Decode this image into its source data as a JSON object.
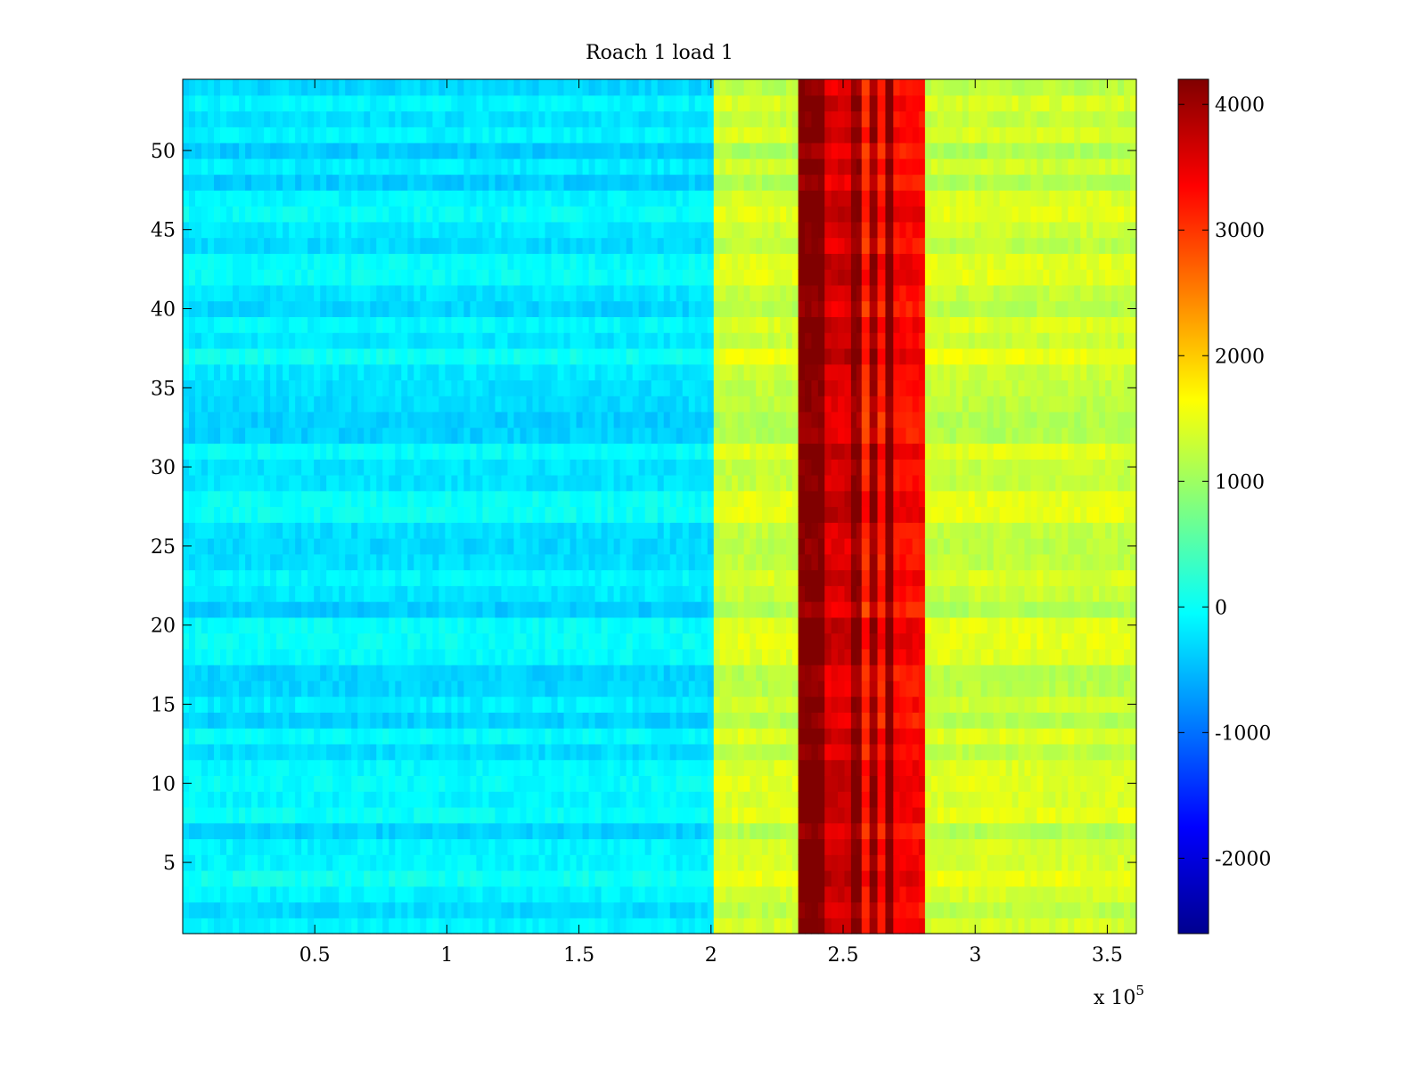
{
  "chart_data": {
    "type": "heatmap",
    "title": "Roach 1 load 1",
    "xlabel": "",
    "ylabel": "",
    "colormap": "jet",
    "x_range": [
      0,
      361000
    ],
    "y_range": [
      0.5,
      54.5
    ],
    "x_exponent_label": "x 10",
    "x_exponent": "5",
    "x_ticks": [
      {
        "value": 50000,
        "label": "0.5"
      },
      {
        "value": 100000,
        "label": "1"
      },
      {
        "value": 150000,
        "label": "1.5"
      },
      {
        "value": 200000,
        "label": "2"
      },
      {
        "value": 250000,
        "label": "2.5"
      },
      {
        "value": 300000,
        "label": "3"
      },
      {
        "value": 350000,
        "label": "3.5"
      }
    ],
    "y_ticks": [
      {
        "value": 5,
        "label": "5"
      },
      {
        "value": 10,
        "label": "10"
      },
      {
        "value": 15,
        "label": "15"
      },
      {
        "value": 20,
        "label": "20"
      },
      {
        "value": 25,
        "label": "25"
      },
      {
        "value": 30,
        "label": "30"
      },
      {
        "value": 35,
        "label": "35"
      },
      {
        "value": 40,
        "label": "40"
      },
      {
        "value": 45,
        "label": "45"
      },
      {
        "value": 50,
        "label": "50"
      }
    ],
    "colorbar": {
      "clim": [
        -2600,
        4200
      ],
      "ticks": [
        {
          "value": -2000,
          "label": "-2000"
        },
        {
          "value": -1000,
          "label": "-1000"
        },
        {
          "value": 0,
          "label": "0"
        },
        {
          "value": 1000,
          "label": "1000"
        },
        {
          "value": 2000,
          "label": "2000"
        },
        {
          "value": 3000,
          "label": "3000"
        },
        {
          "value": 4000,
          "label": "4000"
        }
      ]
    },
    "rows": 54,
    "x_segments": [
      {
        "x_start": 0,
        "x_end": 201000,
        "base_value": -200
      },
      {
        "x_start": 201000,
        "x_end": 233000,
        "base_value": 1300
      },
      {
        "x_start": 233000,
        "x_end": 243000,
        "base_value": 4200
      },
      {
        "x_start": 243000,
        "x_end": 253000,
        "base_value": 3600
      },
      {
        "x_start": 253000,
        "x_end": 257000,
        "base_value": 4100
      },
      {
        "x_start": 257000,
        "x_end": 260000,
        "base_value": 3100
      },
      {
        "x_start": 260000,
        "x_end": 263000,
        "base_value": 4000
      },
      {
        "x_start": 263000,
        "x_end": 266000,
        "base_value": 3200
      },
      {
        "x_start": 266000,
        "x_end": 269000,
        "base_value": 4200
      },
      {
        "x_start": 269000,
        "x_end": 281000,
        "base_value": 3300
      },
      {
        "x_start": 281000,
        "x_end": 361000,
        "base_value": 1300
      }
    ]
  }
}
